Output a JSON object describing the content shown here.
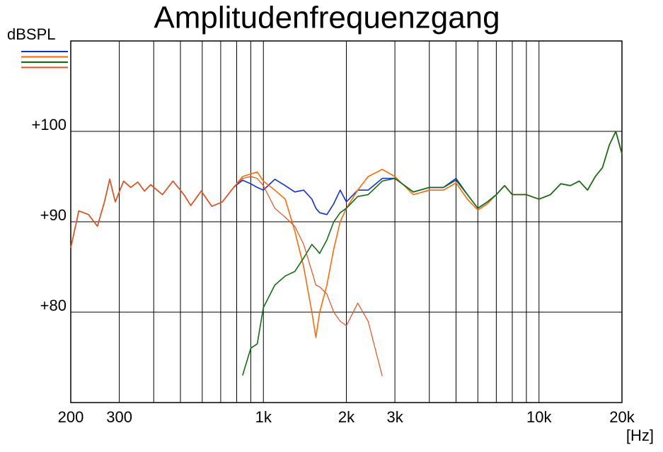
{
  "chart_data": {
    "type": "line",
    "title": "Amplitudenfrequenzgang",
    "y_label": "dBSPL",
    "x_label": "[Hz]",
    "log_x": true,
    "grid": true,
    "xlim": [
      200,
      20000
    ],
    "ylim": [
      70,
      110
    ],
    "xticks": [
      200,
      300,
      {
        "value": 1000,
        "label": "1k"
      },
      {
        "value": 2000,
        "label": "2k"
      },
      {
        "value": 3000,
        "label": "3k"
      },
      {
        "value": 10000,
        "label": "10k"
      },
      {
        "value": 20000,
        "label": "20k"
      }
    ],
    "xminor": [
      400,
      500,
      600,
      700,
      800,
      900,
      4000,
      5000,
      6000,
      7000,
      8000,
      9000
    ],
    "yticks": [
      {
        "value": 80,
        "label": "+80"
      },
      {
        "value": 90,
        "label": "+90"
      },
      {
        "value": 100,
        "label": "+100"
      }
    ],
    "x": [
      200,
      214,
      232,
      250,
      265,
      277,
      290,
      311,
      330,
      350,
      370,
      390,
      430,
      470,
      515,
      545,
      595,
      650,
      710,
      780,
      840,
      900,
      950,
      1000,
      1100,
      1200,
      1300,
      1400,
      1500,
      1550,
      1600,
      1700,
      1800,
      1900,
      2000,
      2200,
      2400,
      2700,
      3000,
      3500,
      4000,
      4500,
      5000,
      5500,
      6000,
      6500,
      7000,
      7500,
      8000,
      9000,
      10000,
      11000,
      12000,
      13000,
      14000,
      15000,
      16000,
      17000,
      18000,
      19000,
      20000
    ],
    "series": [
      {
        "color": "#1030e0",
        "values": [
          87.1,
          91.2,
          90.8,
          89.5,
          92.2,
          94.7,
          92.2,
          94.5,
          93.8,
          94.4,
          93.4,
          94.1,
          93.0,
          94.5,
          93.0,
          91.8,
          93.4,
          91.7,
          92.2,
          93.8,
          94.6,
          94.2,
          93.8,
          93.5,
          94.7,
          94.0,
          93.3,
          93.5,
          92.5,
          91.5,
          91.0,
          90.8,
          92.0,
          93.5,
          92.2,
          93.5,
          93.5,
          94.8,
          94.8,
          93.3,
          93.8,
          93.8,
          94.8,
          93.0,
          91.5,
          92.2,
          93.0,
          94.0,
          93.0,
          93.0,
          92.5,
          93.0,
          94.2,
          94.0,
          94.5,
          93.5,
          95.0,
          96.0,
          98.5,
          100.0,
          97.5
        ]
      },
      {
        "color": "#ff6a00",
        "values": [
          87.1,
          91.2,
          90.8,
          89.5,
          92.2,
          94.7,
          92.2,
          94.5,
          93.8,
          94.4,
          93.4,
          94.1,
          93.0,
          94.5,
          93.0,
          91.8,
          93.4,
          91.7,
          92.2,
          93.8,
          95.0,
          95.3,
          95.5,
          94.5,
          93.5,
          92.5,
          89.0,
          85.0,
          80.0,
          77.2,
          80.0,
          83.0,
          87.0,
          90.0,
          91.5,
          93.5,
          95.0,
          95.8,
          95.0,
          93.0,
          93.5,
          93.5,
          94.3,
          92.5,
          91.3,
          92.0,
          93.0,
          94.0,
          93.0,
          93.0,
          92.5,
          93.0,
          94.2,
          94.0,
          94.5,
          93.5,
          95.0,
          96.0,
          98.5,
          100.0,
          97.5
        ]
      },
      {
        "color": "#107010",
        "values": [
          null,
          null,
          null,
          null,
          null,
          null,
          null,
          null,
          null,
          null,
          null,
          null,
          null,
          null,
          null,
          null,
          null,
          null,
          null,
          null,
          73.0,
          76.0,
          76.5,
          80.5,
          83.0,
          84.0,
          84.5,
          86.0,
          87.5,
          87.0,
          86.5,
          88.0,
          90.0,
          91.0,
          91.5,
          92.8,
          93.0,
          94.5,
          94.8,
          93.3,
          93.8,
          93.8,
          94.6,
          93.0,
          91.5,
          92.2,
          93.0,
          94.0,
          93.0,
          93.0,
          92.5,
          93.0,
          94.2,
          94.0,
          94.5,
          93.5,
          95.0,
          96.0,
          98.5,
          100.0,
          97.5
        ]
      },
      {
        "color": "#e8501c",
        "values": [
          87.1,
          91.2,
          90.8,
          89.5,
          92.2,
          94.7,
          92.2,
          94.5,
          93.8,
          94.4,
          93.4,
          94.1,
          93.0,
          94.5,
          93.0,
          91.8,
          93.4,
          91.7,
          92.2,
          93.8,
          94.8,
          95.0,
          94.8,
          94.0,
          91.5,
          90.5,
          89.5,
          87.5,
          84.5,
          83.0,
          82.8,
          82.0,
          80.0,
          79.0,
          78.5,
          81.0,
          79.0,
          72.9,
          null,
          null,
          null,
          null,
          null,
          null,
          null,
          null,
          null,
          null,
          null,
          null,
          null,
          null,
          null,
          null,
          null,
          null,
          null,
          null,
          null,
          null,
          null
        ]
      }
    ]
  }
}
